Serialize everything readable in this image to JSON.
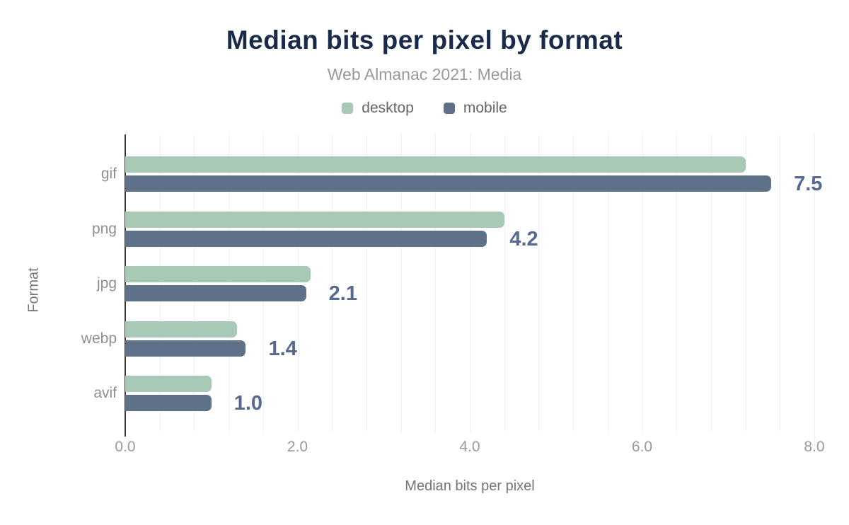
{
  "chart": {
    "title": "Median bits per pixel by format",
    "subtitle": "Web Almanac 2021: Media",
    "xlabel": "Median bits per pixel",
    "ylabel": "Format"
  },
  "chart_data": {
    "type": "bar",
    "orientation": "horizontal",
    "title": "Median bits per pixel by format",
    "subtitle": "Web Almanac 2021: Media",
    "xlabel": "Median bits per pixel",
    "ylabel": "Format",
    "categories": [
      "gif",
      "png",
      "jpg",
      "webp",
      "avif"
    ],
    "series": [
      {
        "name": "desktop",
        "color": "#a8c9b5",
        "values": [
          7.2,
          4.4,
          2.15,
          1.3,
          1.0
        ]
      },
      {
        "name": "mobile",
        "color": "#5f7189",
        "values": [
          7.5,
          4.2,
          2.1,
          1.4,
          1.0
        ]
      }
    ],
    "value_labels": [
      "7.5",
      "4.2",
      "2.1",
      "1.4",
      "1.0"
    ],
    "value_labels_series": "mobile",
    "xlim": [
      0,
      8
    ],
    "x_ticks": [
      {
        "value": 0,
        "label": "0.0"
      },
      {
        "value": 2,
        "label": "2.0"
      },
      {
        "value": 4,
        "label": "4.0"
      },
      {
        "value": 6,
        "label": "6.0"
      },
      {
        "value": 8,
        "label": "8.0"
      }
    ],
    "minor_grid_step": 0.4,
    "grid": true,
    "legend_position": "top"
  },
  "colors": {
    "title": "#1a2b49",
    "subtitle": "#999999",
    "legend_text": "#666666",
    "axis_title": "#757575",
    "tick_label": "#999999",
    "category_label": "#8f8f8f",
    "value_label": "#56698e",
    "gridline": "#f0f0f0",
    "axis_line": "#333333",
    "background": "#ffffff"
  }
}
